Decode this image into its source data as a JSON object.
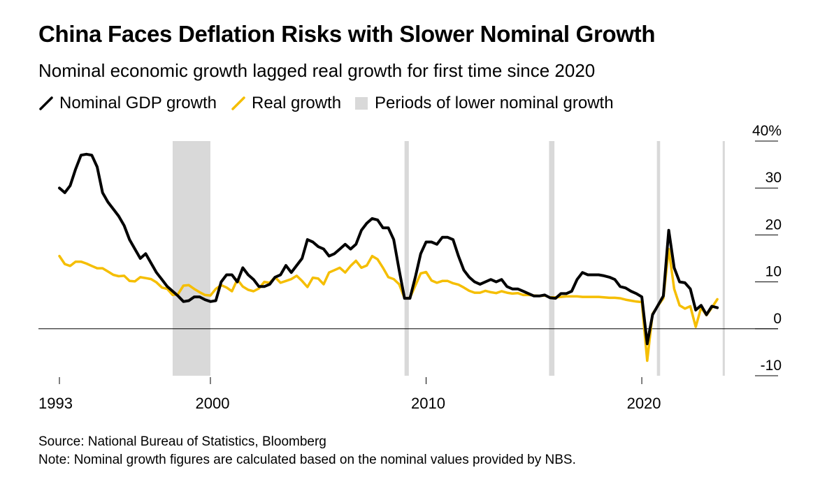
{
  "title": "China Faces Deflation Risks with Slower Nominal Growth",
  "subtitle": "Nominal economic growth lagged real growth for first time since 2020",
  "legend": [
    {
      "label": "Nominal GDP growth",
      "color": "#000000",
      "kind": "line"
    },
    {
      "label": "Real growth",
      "color": "#F5BE00",
      "kind": "line"
    },
    {
      "label": "Periods of lower nominal growth",
      "color": "#D9D9D9",
      "kind": "box"
    }
  ],
  "source": "Source: National Bureau of Statistics, Bloomberg",
  "note": "Note: Nominal growth figures are calculated based on the nominal values provided by NBS.",
  "chart_data": {
    "type": "line",
    "xlim": [
      1993,
      2024.6
    ],
    "ylim": [
      -10,
      40
    ],
    "y_ticks": [
      -10,
      0,
      10,
      20,
      30,
      40
    ],
    "y_tick_labels": [
      "-10",
      "0",
      "10",
      "20",
      "30",
      "40%"
    ],
    "x_ticks": [
      1993,
      2000,
      2010,
      2020
    ],
    "x_tick_labels": [
      "1993",
      "2000",
      "2010",
      "2020"
    ],
    "shaded_periods": [
      [
        1998.25,
        1999.9
      ],
      [
        1999.75,
        2000.0
      ],
      [
        2009.0,
        2009.2
      ],
      [
        2015.7,
        2015.95
      ],
      [
        2020.7,
        2020.85
      ],
      [
        2023.75,
        2023.85
      ]
    ],
    "series": [
      {
        "name": "Nominal GDP growth",
        "color": "#000000",
        "points": [
          [
            1993.0,
            30
          ],
          [
            1993.25,
            29
          ],
          [
            1993.5,
            30.5
          ],
          [
            1993.75,
            34
          ],
          [
            1994.0,
            37
          ],
          [
            1994.25,
            37.2
          ],
          [
            1994.5,
            37
          ],
          [
            1994.75,
            34.5
          ],
          [
            1995.0,
            29
          ],
          [
            1995.25,
            27
          ],
          [
            1995.5,
            25.5
          ],
          [
            1995.75,
            24
          ],
          [
            1996.0,
            22
          ],
          [
            1996.25,
            19
          ],
          [
            1996.5,
            17
          ],
          [
            1996.75,
            15
          ],
          [
            1997.0,
            16
          ],
          [
            1997.25,
            14
          ],
          [
            1997.5,
            12
          ],
          [
            1997.75,
            10.5
          ],
          [
            1998.0,
            9
          ],
          [
            1998.25,
            8
          ],
          [
            1998.5,
            7
          ],
          [
            1998.75,
            5.8
          ],
          [
            1999.0,
            6
          ],
          [
            1999.25,
            6.8
          ],
          [
            1999.5,
            6.8
          ],
          [
            1999.75,
            6.2
          ],
          [
            2000.0,
            5.8
          ],
          [
            2000.25,
            6
          ],
          [
            2000.5,
            10
          ],
          [
            2000.75,
            11.5
          ],
          [
            2001.0,
            11.5
          ],
          [
            2001.25,
            10
          ],
          [
            2001.5,
            13
          ],
          [
            2001.75,
            11.5
          ],
          [
            2002.0,
            10.5
          ],
          [
            2002.25,
            9
          ],
          [
            2002.5,
            9
          ],
          [
            2002.75,
            9.5
          ],
          [
            2003.0,
            11
          ],
          [
            2003.25,
            11.5
          ],
          [
            2003.5,
            13.5
          ],
          [
            2003.75,
            12
          ],
          [
            2004.0,
            13.5
          ],
          [
            2004.25,
            15
          ],
          [
            2004.5,
            19
          ],
          [
            2004.75,
            18.5
          ],
          [
            2005.0,
            17.5
          ],
          [
            2005.25,
            17
          ],
          [
            2005.5,
            15.5
          ],
          [
            2005.75,
            16
          ],
          [
            2006.0,
            17
          ],
          [
            2006.25,
            18
          ],
          [
            2006.5,
            17
          ],
          [
            2006.75,
            18
          ],
          [
            2007.0,
            21
          ],
          [
            2007.25,
            22.5
          ],
          [
            2007.5,
            23.5
          ],
          [
            2007.75,
            23.2
          ],
          [
            2008.0,
            21.5
          ],
          [
            2008.25,
            21.5
          ],
          [
            2008.5,
            19
          ],
          [
            2008.75,
            12.5
          ],
          [
            2009.0,
            6.5
          ],
          [
            2009.25,
            6.5
          ],
          [
            2009.5,
            11
          ],
          [
            2009.75,
            16
          ],
          [
            2010.0,
            18.5
          ],
          [
            2010.25,
            18.5
          ],
          [
            2010.5,
            18
          ],
          [
            2010.75,
            19.5
          ],
          [
            2011.0,
            19.5
          ],
          [
            2011.25,
            19
          ],
          [
            2011.5,
            15.5
          ],
          [
            2011.75,
            12.5
          ],
          [
            2012.0,
            11
          ],
          [
            2012.25,
            10
          ],
          [
            2012.5,
            9.5
          ],
          [
            2012.75,
            10
          ],
          [
            2013.0,
            10.5
          ],
          [
            2013.25,
            10
          ],
          [
            2013.5,
            10.5
          ],
          [
            2013.75,
            9
          ],
          [
            2014.0,
            8.5
          ],
          [
            2014.25,
            8.5
          ],
          [
            2014.5,
            8
          ],
          [
            2014.75,
            7.5
          ],
          [
            2015.0,
            7
          ],
          [
            2015.25,
            7
          ],
          [
            2015.5,
            7.2
          ],
          [
            2015.75,
            6.6
          ],
          [
            2016.0,
            6.5
          ],
          [
            2016.25,
            7.5
          ],
          [
            2016.5,
            7.5
          ],
          [
            2016.75,
            8
          ],
          [
            2017.0,
            10.5
          ],
          [
            2017.25,
            12
          ],
          [
            2017.5,
            11.5
          ],
          [
            2017.75,
            11.5
          ],
          [
            2018.0,
            11.5
          ],
          [
            2018.25,
            11.3
          ],
          [
            2018.5,
            11
          ],
          [
            2018.75,
            10.5
          ],
          [
            2019.0,
            9
          ],
          [
            2019.25,
            8.7
          ],
          [
            2019.5,
            8
          ],
          [
            2019.75,
            7.5
          ],
          [
            2020.0,
            6.8
          ],
          [
            2020.25,
            -3.2
          ],
          [
            2020.5,
            3
          ],
          [
            2020.75,
            5
          ],
          [
            2021.0,
            7
          ],
          [
            2021.25,
            21
          ],
          [
            2021.5,
            13
          ],
          [
            2021.75,
            10
          ],
          [
            2022.0,
            9.8
          ],
          [
            2022.25,
            8.5
          ],
          [
            2022.5,
            4
          ],
          [
            2022.75,
            5
          ],
          [
            2023.0,
            3
          ],
          [
            2023.25,
            4.8
          ],
          [
            2023.5,
            4.5
          ]
        ]
      },
      {
        "name": "Real growth",
        "color": "#F5BE00",
        "points": [
          [
            1993.0,
            15.5
          ],
          [
            1993.25,
            13.8
          ],
          [
            1993.5,
            13.4
          ],
          [
            1993.75,
            14.3
          ],
          [
            1994.0,
            14.3
          ],
          [
            1994.25,
            13.9
          ],
          [
            1994.5,
            13.4
          ],
          [
            1994.75,
            12.9
          ],
          [
            1995.0,
            12.9
          ],
          [
            1995.25,
            12.2
          ],
          [
            1995.5,
            11.5
          ],
          [
            1995.75,
            11.2
          ],
          [
            1996.0,
            11.3
          ],
          [
            1996.25,
            10.2
          ],
          [
            1996.5,
            10.1
          ],
          [
            1996.75,
            11
          ],
          [
            1997.0,
            10.8
          ],
          [
            1997.25,
            10.6
          ],
          [
            1997.5,
            9.9
          ],
          [
            1997.75,
            8.8
          ],
          [
            1998.0,
            8.5
          ],
          [
            1998.25,
            7.2
          ],
          [
            1998.5,
            7.4
          ],
          [
            1998.75,
            9.2
          ],
          [
            1999.0,
            9.3
          ],
          [
            1999.25,
            8.5
          ],
          [
            1999.5,
            7.8
          ],
          [
            1999.75,
            7.2
          ],
          [
            2000.0,
            7.1
          ],
          [
            2000.25,
            8.5
          ],
          [
            2000.5,
            9.3
          ],
          [
            2000.75,
            8.8
          ],
          [
            2001.0,
            8
          ],
          [
            2001.25,
            10.5
          ],
          [
            2001.5,
            9
          ],
          [
            2001.75,
            8.3
          ],
          [
            2002.0,
            8
          ],
          [
            2002.25,
            8.6
          ],
          [
            2002.5,
            10
          ],
          [
            2002.75,
            9.8
          ],
          [
            2003.0,
            11
          ],
          [
            2003.25,
            9.8
          ],
          [
            2003.5,
            10.2
          ],
          [
            2003.75,
            10.6
          ],
          [
            2004.0,
            11.3
          ],
          [
            2004.25,
            10.2
          ],
          [
            2004.5,
            8.9
          ],
          [
            2004.75,
            10.9
          ],
          [
            2005.0,
            10.7
          ],
          [
            2005.25,
            9.5
          ],
          [
            2005.5,
            12
          ],
          [
            2005.75,
            12.5
          ],
          [
            2006.0,
            13
          ],
          [
            2006.25,
            12
          ],
          [
            2006.5,
            13.4
          ],
          [
            2006.75,
            14.5
          ],
          [
            2007.0,
            13
          ],
          [
            2007.25,
            13.5
          ],
          [
            2007.5,
            15.5
          ],
          [
            2007.75,
            14.8
          ],
          [
            2008.0,
            13
          ],
          [
            2008.25,
            11
          ],
          [
            2008.5,
            10.6
          ],
          [
            2008.75,
            9.5
          ],
          [
            2009.0,
            6.5
          ],
          [
            2009.25,
            6.6
          ],
          [
            2009.5,
            9.2
          ],
          [
            2009.75,
            11.8
          ],
          [
            2010.0,
            12.1
          ],
          [
            2010.25,
            10.3
          ],
          [
            2010.5,
            9.8
          ],
          [
            2010.75,
            10.2
          ],
          [
            2011.0,
            10.2
          ],
          [
            2011.25,
            9.7
          ],
          [
            2011.5,
            9.4
          ],
          [
            2011.75,
            8.8
          ],
          [
            2012.0,
            8.1
          ],
          [
            2012.25,
            7.7
          ],
          [
            2012.5,
            7.7
          ],
          [
            2012.75,
            8.1
          ],
          [
            2013.0,
            7.8
          ],
          [
            2013.25,
            7.6
          ],
          [
            2013.5,
            8
          ],
          [
            2013.75,
            7.7
          ],
          [
            2014.0,
            7.5
          ],
          [
            2014.25,
            7.6
          ],
          [
            2014.5,
            7.2
          ],
          [
            2014.75,
            7.2
          ],
          [
            2015.0,
            7.1
          ],
          [
            2015.25,
            7
          ],
          [
            2015.5,
            7.1
          ],
          [
            2015.75,
            6.7
          ],
          [
            2016.0,
            6.7
          ],
          [
            2016.25,
            6.8
          ],
          [
            2016.5,
            6.9
          ],
          [
            2016.75,
            6.9
          ],
          [
            2017.0,
            6.9
          ],
          [
            2017.25,
            6.8
          ],
          [
            2017.5,
            6.8
          ],
          [
            2017.75,
            6.8
          ],
          [
            2018.0,
            6.8
          ],
          [
            2018.25,
            6.7
          ],
          [
            2018.5,
            6.6
          ],
          [
            2018.75,
            6.6
          ],
          [
            2019.0,
            6.5
          ],
          [
            2019.25,
            6.2
          ],
          [
            2019.5,
            6
          ],
          [
            2019.75,
            5.8
          ],
          [
            2020.0,
            5.7
          ],
          [
            2020.25,
            -6.8
          ],
          [
            2020.5,
            3.2
          ],
          [
            2020.75,
            4.9
          ],
          [
            2021.0,
            6.5
          ],
          [
            2021.25,
            17
          ],
          [
            2021.5,
            8.5
          ],
          [
            2021.75,
            5
          ],
          [
            2022.0,
            4.3
          ],
          [
            2022.25,
            4.8
          ],
          [
            2022.5,
            0.4
          ],
          [
            2022.75,
            4.5
          ],
          [
            2023.0,
            2.9
          ],
          [
            2023.25,
            4.5
          ],
          [
            2023.5,
            6.3
          ]
        ]
      }
    ]
  }
}
